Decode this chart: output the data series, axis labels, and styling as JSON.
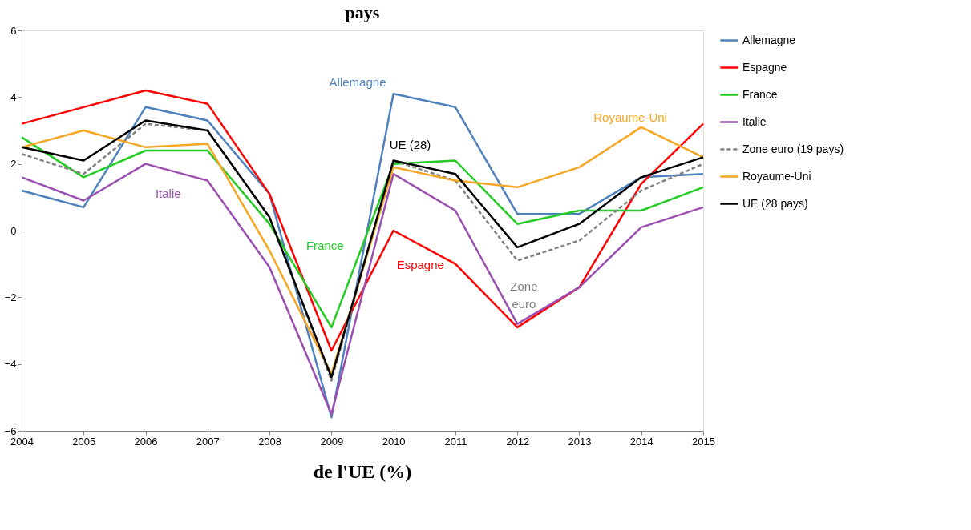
{
  "chart_data": {
    "type": "line",
    "title": "pays",
    "categories": [
      "2004",
      "2005",
      "2006",
      "2007",
      "2008",
      "2009",
      "2010",
      "2011",
      "2012",
      "2013",
      "2014",
      "2015"
    ],
    "series": [
      {
        "name": "Allemagne",
        "color": "#4f81bd",
        "values": [
          1.2,
          0.7,
          3.7,
          3.3,
          1.1,
          -5.6,
          4.1,
          3.7,
          0.5,
          0.5,
          1.6,
          1.7
        ]
      },
      {
        "name": "Espagne",
        "color": "#ff0000",
        "values": [
          3.2,
          3.7,
          4.2,
          3.8,
          1.1,
          -3.6,
          0.0,
          -1.0,
          -2.9,
          -1.7,
          1.4,
          3.2
        ]
      },
      {
        "name": "France",
        "color": "#22cc22",
        "values": [
          2.8,
          1.6,
          2.4,
          2.4,
          0.2,
          -2.9,
          2.0,
          2.1,
          0.2,
          0.6,
          0.6,
          1.3
        ]
      },
      {
        "name": "Italie",
        "color": "#9b4fb0",
        "values": [
          1.6,
          0.9,
          2.0,
          1.5,
          -1.1,
          -5.5,
          1.7,
          0.6,
          -2.8,
          -1.7,
          0.1,
          0.7
        ]
      },
      {
        "name": "Zone euro (19 pays)",
        "color": "#808080",
        "line_style": "dashed",
        "values": [
          2.3,
          1.7,
          3.2,
          3.0,
          0.4,
          -4.5,
          2.1,
          1.5,
          -0.9,
          -0.3,
          1.2,
          2.0
        ]
      },
      {
        "name": "Royaume-Uni",
        "color": "#f5a623",
        "values": [
          2.5,
          3.0,
          2.5,
          2.6,
          -0.6,
          -4.3,
          1.9,
          1.5,
          1.3,
          1.9,
          3.1,
          2.2
        ]
      },
      {
        "name": "UE (28 pays)",
        "color": "#000000",
        "values": [
          2.5,
          2.1,
          3.3,
          3.0,
          0.4,
          -4.4,
          2.1,
          1.7,
          -0.5,
          0.2,
          1.6,
          2.2
        ]
      }
    ],
    "ylim": [
      -6,
      6
    ],
    "yticks": [
      -6,
      -4,
      -2,
      0,
      2,
      4,
      6
    ],
    "grid": false,
    "legend": "right",
    "line_style": "solid",
    "marker": "none",
    "annotations": [
      "Allemagne",
      "UE (28)",
      "Royaume-Uni",
      "Italie",
      "France",
      "Espagne",
      "Zone\neuro",
      "de l'UE (%)"
    ]
  }
}
